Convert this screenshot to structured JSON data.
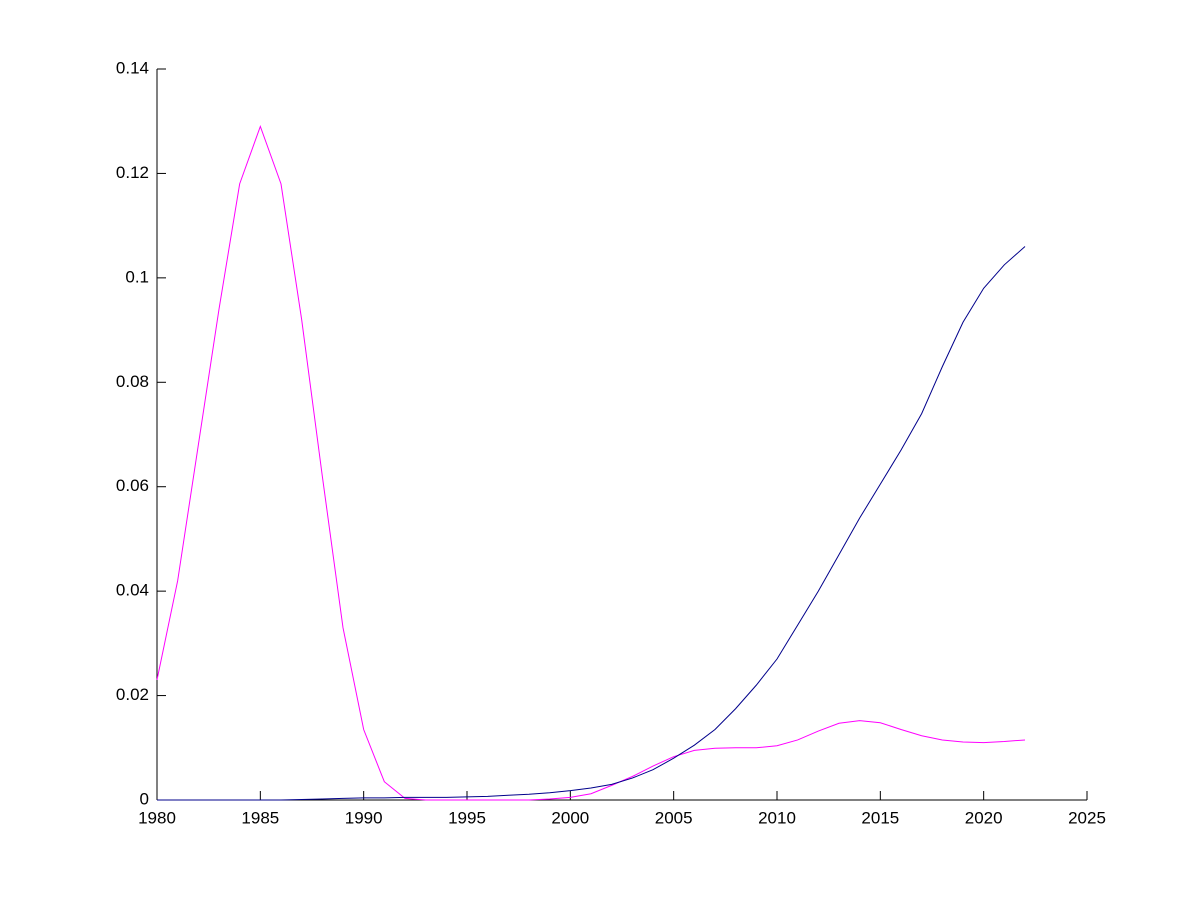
{
  "chart_data": {
    "type": "line",
    "x": [
      1980,
      1981,
      1982,
      1983,
      1984,
      1985,
      1986,
      1987,
      1988,
      1989,
      1990,
      1991,
      1992,
      1993,
      1994,
      1995,
      1996,
      1997,
      1998,
      1999,
      2000,
      2001,
      2002,
      2003,
      2004,
      2005,
      2006,
      2007,
      2008,
      2009,
      2010,
      2011,
      2012,
      2013,
      2014,
      2015,
      2016,
      2017,
      2018,
      2019,
      2020,
      2021,
      2022
    ],
    "series": [
      {
        "color": "#ff00ff",
        "values": [
          0.023,
          0.042,
          0.068,
          0.094,
          0.118,
          0.129,
          0.118,
          0.092,
          0.062,
          0.033,
          0.0135,
          0.0035,
          0.0003,
          0,
          0,
          0,
          0,
          0,
          0,
          0.0002,
          0.0005,
          0.0012,
          0.0028,
          0.0045,
          0.0065,
          0.0083,
          0.0095,
          0.0099,
          0.01,
          0.01,
          0.0104,
          0.0115,
          0.0132,
          0.0147,
          0.0152,
          0.0148,
          0.0135,
          0.0123,
          0.0115,
          0.0111,
          0.011,
          0.0112,
          0.0115
        ]
      },
      {
        "color": "#00008b",
        "values": [
          0,
          0,
          0,
          0,
          0,
          0,
          0,
          0.0001,
          0.0002,
          0.0003,
          0.0004,
          0.0004,
          0.0005,
          0.0005,
          0.0005,
          0.0006,
          0.0007,
          0.0009,
          0.0011,
          0.0014,
          0.0018,
          0.0023,
          0.003,
          0.0042,
          0.0058,
          0.008,
          0.0105,
          0.0135,
          0.0175,
          0.022,
          0.027,
          0.0335,
          0.04,
          0.047,
          0.054,
          0.0605,
          0.067,
          0.074,
          0.083,
          0.0915,
          0.098,
          0.1025,
          0.106
        ]
      }
    ],
    "xlim": [
      1980,
      2025
    ],
    "xticks": [
      1980,
      1985,
      1990,
      1995,
      2000,
      2005,
      2010,
      2015,
      2020,
      2025
    ],
    "ylim": [
      0,
      0.14
    ],
    "yticks": [
      0,
      0.02,
      0.04,
      0.06,
      0.08,
      0.1,
      0.12,
      0.14
    ],
    "grid": false
  }
}
